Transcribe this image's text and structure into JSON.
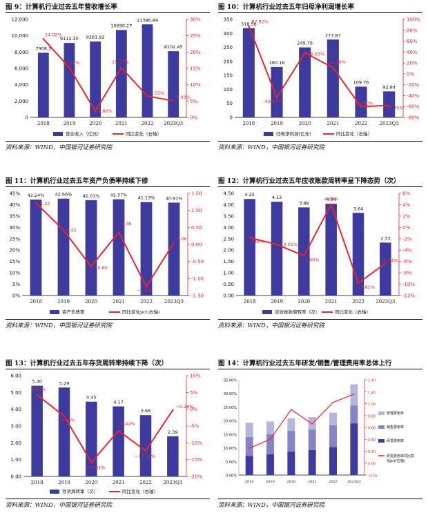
{
  "source_text": "资料来源：WIND，中国银河证券研究院",
  "colors": {
    "bar": "#3d3aa0",
    "line": "#e8262a",
    "axis_right": "#e8262a",
    "bar_light1": "#b7b5dc",
    "bar_light2": "#8683c6"
  },
  "chart_data": [
    {
      "title": "图 9：计算机行业过去五年营收增长率",
      "type": "bar",
      "categories": [
        "2018",
        "2019",
        "2020",
        "2021",
        "2022",
        "2023Q3"
      ],
      "series": [
        {
          "name": "营业收入（亿元）",
          "type": "bar",
          "values": [
            7908.3,
            9112.3,
            9281.92,
            10690.27,
            11386.89,
            8102.45
          ],
          "labels": [
            "7908.3",
            "9112.30",
            "9281.92",
            "10690.27",
            "11386.89",
            "8102.45"
          ]
        },
        {
          "name": "同比变化（右轴）",
          "type": "line",
          "axis": "right",
          "values": [
            24.02,
            15.22,
            1.86,
            15.17,
            6.52,
            5.03
          ],
          "labels": [
            "24.02%",
            "15.22%",
            "1.86%",
            "15.17%",
            "6.52%",
            "5.03%"
          ]
        }
      ],
      "ylim": [
        0,
        12000
      ],
      "yticks": [
        "0",
        "2,000",
        "4,000",
        "6,000",
        "8,000",
        "10,000",
        "12,000"
      ],
      "y2lim": [
        0,
        30
      ],
      "y2ticks": [
        "0%",
        "5%",
        "10%",
        "15%",
        "20%",
        "25%",
        "30%"
      ]
    },
    {
      "title": "图 10：计算机行业过去五年归母净利润增长率",
      "type": "bar",
      "categories": [
        "2018",
        "2019",
        "2020",
        "2021",
        "2022",
        "2023Q3"
      ],
      "series": [
        {
          "name": "归母净利润(亿元)",
          "type": "bar",
          "values": [
            318.56,
            180.16,
            249.76,
            277.87,
            109.76,
            92.84
          ],
          "labels": [
            "318.56",
            "180.16",
            "249.76",
            "277.87",
            "109.76",
            "92.84"
          ]
        },
        {
          "name": "同比变化（右轴）",
          "type": "line",
          "axis": "right",
          "values": [
            87.82,
            -43.45,
            38.63,
            11.26,
            -60.5,
            -57.75
          ],
          "labels": [
            "87.82%",
            "-43.45%",
            "38.63%",
            "11.26%",
            "-60.50%",
            "-57.75%"
          ]
        }
      ],
      "ylim": [
        0,
        350
      ],
      "yticks": [
        "0",
        "50",
        "100",
        "150",
        "200",
        "250",
        "300",
        "350"
      ],
      "y2lim": [
        -80,
        100
      ],
      "y2ticks": [
        "-80%",
        "-60%",
        "-40%",
        "-20%",
        "0%",
        "20%",
        "40%",
        "60%",
        "80%",
        "100%"
      ]
    },
    {
      "title": "图 11：计算机行业过去五年资产负债率持续下修",
      "type": "bar",
      "categories": [
        "2018",
        "2019",
        "2020",
        "2021",
        "2022",
        "2023Q3"
      ],
      "series": [
        {
          "name": "资产负债率",
          "type": "bar",
          "values": [
            42.24,
            42.66,
            42.01,
            42.37,
            41.13,
            40.91
          ],
          "labels": [
            "42.24%",
            "42.66%",
            "42.01%",
            "42.37%",
            "41.13%",
            "40.91%"
          ]
        },
        {
          "name": "同比变化pct(右轴)",
          "type": "line",
          "axis": "right",
          "values": [
            1.22,
            0.42,
            -0.65,
            0.36,
            -1.24,
            0.06
          ],
          "labels": [
            "1.22",
            "0.42",
            "−0.65",
            "0.36",
            "−1.24",
            "0.06"
          ]
        }
      ],
      "ylim": [
        0,
        45
      ],
      "yticks": [
        "0%",
        "5%",
        "10%",
        "15%",
        "20%",
        "25%",
        "30%",
        "35%",
        "40%",
        "45%"
      ],
      "y2lim": [
        -1.5,
        1.5
      ],
      "y2ticks": [
        "-1.50",
        "-1.00",
        "-0.50",
        "0.00",
        "0.50",
        "1.00",
        "1.50"
      ]
    },
    {
      "title": "图 12：计算机行业过去五年应收账款周转率呈下降态势（次）",
      "type": "bar",
      "categories": [
        "2018",
        "2019",
        "2020",
        "2021",
        "2022",
        "2023Q3"
      ],
      "series": [
        {
          "name": "应收账款周转率（次）",
          "type": "bar",
          "values": [
            4.25,
            4.13,
            3.88,
            4.04,
            3.64,
            2.33
          ],
          "labels": [
            "4.25",
            "4.13",
            "3.88",
            "4.04",
            "3.64",
            "2.33"
          ]
        },
        {
          "name": "同比变化（右轴）",
          "type": "line",
          "axis": "right",
          "values": [
            -1.8,
            -3.01,
            -5.0,
            4.06,
            -9.81,
            -6.34
          ],
          "labels": [
            "−1.80%",
            "−3.01%",
            "−5.00%",
            "4.06%",
            "−9.81%",
            "−6.34%"
          ]
        }
      ],
      "ylim": [
        0,
        4.5
      ],
      "yticks": [
        "0.00",
        "0.50",
        "1.00",
        "1.50",
        "2.00",
        "2.50",
        "3.00",
        "3.50",
        "4.00",
        "4.50"
      ],
      "y2lim": [
        -12,
        6
      ],
      "y2ticks": [
        "-12%",
        "-10%",
        "-8%",
        "-6%",
        "-4%",
        "-2%",
        "0%",
        "2%",
        "4%",
        "6%"
      ]
    },
    {
      "title": "图 13：计算机行业过去五年存货周转率持续下降（次）",
      "type": "bar",
      "categories": [
        "2018",
        "2019",
        "2020",
        "2021",
        "2022",
        "2023Q3"
      ],
      "series": [
        {
          "name": "存货周转率（次）",
          "type": "bar",
          "values": [
            5.4,
            5.29,
            4.45,
            4.17,
            3.65,
            2.39
          ],
          "labels": [
            "5.40",
            "5.29",
            "4.45",
            "4.17",
            "3.65",
            "2.39"
          ]
        },
        {
          "name": "同比变化（右轴）",
          "type": "line",
          "axis": "right",
          "values": [
            4.27,
            -2.06,
            -15.81,
            -6.42,
            -12.37,
            -0.26
          ],
          "labels": [
            "4.27%",
            "−2.06%",
            "−15.81%",
            "−6.42%",
            "−12.37%",
            "−0.26%"
          ]
        }
      ],
      "ylim": [
        0,
        6
      ],
      "yticks": [
        "0.00",
        "1.00",
        "2.00",
        "3.00",
        "4.00",
        "5.00",
        "6.00"
      ],
      "y2lim": [
        -20,
        10
      ],
      "y2ticks": [
        "-20%",
        "-15%",
        "-10%",
        "-5%",
        "0%",
        "5%",
        "10%"
      ]
    },
    {
      "title": "图 14：计算机行业过去五年研发/销售/管理费用率总体上行",
      "type": "bar",
      "stacked": true,
      "categories": [
        "2018",
        "2019",
        "2020",
        "2021",
        "2022",
        "2023Q3"
      ],
      "series": [
        {
          "name": "研发费用率",
          "type": "bar",
          "values": [
            7.0,
            7.6,
            8.6,
            9.2,
            10.3,
            19.0
          ]
        },
        {
          "name": "销售费用率",
          "type": "bar",
          "values": [
            7.0,
            7.4,
            7.7,
            7.5,
            8.0,
            6.5
          ]
        },
        {
          "name": "管理费用率",
          "type": "bar",
          "values": [
            5.2,
            4.7,
            4.5,
            4.6,
            4.6,
            7.8
          ]
        },
        {
          "name": "研发费用率同比变化pct(右轴)",
          "type": "line",
          "axis": "right",
          "values": [
            0.25,
            0.4,
            0.9,
            0.66,
            1.02,
            1.16
          ]
        }
      ],
      "ylim": [
        0,
        35
      ],
      "yticks": [
        "0.00%",
        "5.00%",
        "10.00%",
        "15.00%",
        "20.00%",
        "25.00%",
        "30.00%",
        "35.00%"
      ],
      "y2lim": [
        -0.2,
        1.4
      ],
      "y2ticks": [
        "-0.20",
        "0.00",
        "0.20",
        "0.40",
        "0.60",
        "0.80",
        "1.00",
        "1.20",
        "1.40"
      ],
      "legend_position": "right"
    }
  ]
}
